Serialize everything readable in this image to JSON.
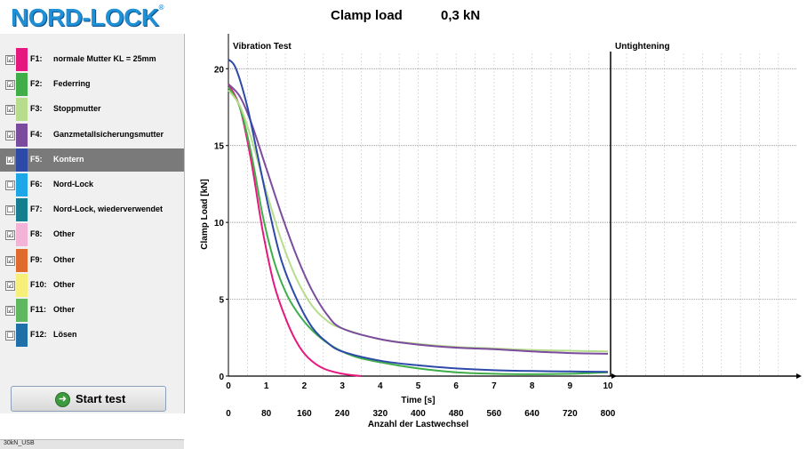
{
  "header": {
    "logo_text": "NORD-LOCK",
    "logo_tm": "®",
    "clamp_label": "Clamp load",
    "clamp_value": "0,3 kN"
  },
  "sidebar": {
    "items": [
      {
        "id": "F1:",
        "name": "normale Mutter KL = 25mm",
        "checked": "☑",
        "color": "#e6187f",
        "selected": false
      },
      {
        "id": "F2:",
        "name": "Federring",
        "checked": "☑",
        "color": "#3fae49",
        "selected": false
      },
      {
        "id": "F3:",
        "name": "Stoppmutter",
        "checked": "☑",
        "color": "#b7dc8c",
        "selected": false
      },
      {
        "id": "F4:",
        "name": "Ganzmetallsicherungsmutter",
        "checked": "☑",
        "color": "#7b4c9e",
        "selected": false
      },
      {
        "id": "F5:",
        "name": "Kontern",
        "checked": "☑",
        "color": "#2d4aa8",
        "selected": true
      },
      {
        "id": "F6:",
        "name": "Nord-Lock",
        "checked": "☐",
        "color": "#1ea7e8",
        "selected": false
      },
      {
        "id": "F7:",
        "name": "Nord-Lock, wiederverwendet",
        "checked": "☐",
        "color": "#147f8e",
        "selected": false
      },
      {
        "id": "F8:",
        "name": "Other",
        "checked": "☑",
        "color": "#f2b3d6",
        "selected": false
      },
      {
        "id": "F9:",
        "name": "Other",
        "checked": "☑",
        "color": "#e06a2c",
        "selected": false
      },
      {
        "id": "F10:",
        "name": "Other",
        "checked": "☑",
        "color": "#f6ef7a",
        "selected": false
      },
      {
        "id": "F11:",
        "name": "Other",
        "checked": "☑",
        "color": "#5fb85f",
        "selected": false
      },
      {
        "id": "F12:",
        "name": "Lösen",
        "checked": "☐",
        "color": "#1f6fa8",
        "selected": false
      }
    ],
    "start_button_label": "Start test",
    "status_text": "30kN_USB"
  },
  "chart_data": {
    "type": "line",
    "panels": [
      "Vibration Test",
      "Untightening"
    ],
    "ylabel": "Clamp Load [kN]",
    "xlabel": "Time [s]",
    "secondary_xlabel": "Anzahl der Lastwechsel",
    "ylim": [
      0,
      21
    ],
    "xlim": [
      0,
      10
    ],
    "yticks": [
      0,
      5,
      10,
      15,
      20
    ],
    "xticks": [
      0,
      1,
      2,
      3,
      4,
      5,
      6,
      7,
      8,
      9,
      10
    ],
    "secondary_xticks": [
      0,
      80,
      160,
      240,
      320,
      400,
      480,
      560,
      640,
      720,
      800
    ],
    "grid": true,
    "series": [
      {
        "color": "#e6187f",
        "points": [
          [
            0,
            19.0
          ],
          [
            0.3,
            17.5
          ],
          [
            0.6,
            14.0
          ],
          [
            0.9,
            9.5
          ],
          [
            1.2,
            6.0
          ],
          [
            1.5,
            3.8
          ],
          [
            1.8,
            2.2
          ],
          [
            2.1,
            1.2
          ],
          [
            2.5,
            0.5
          ],
          [
            3.0,
            0.15
          ],
          [
            3.5,
            0.0
          ]
        ]
      },
      {
        "color": "#3fae49",
        "points": [
          [
            0,
            18.8
          ],
          [
            0.3,
            17.5
          ],
          [
            0.6,
            14.5
          ],
          [
            0.9,
            10.5
          ],
          [
            1.2,
            7.5
          ],
          [
            1.5,
            5.5
          ],
          [
            1.8,
            4.2
          ],
          [
            2.2,
            3.0
          ],
          [
            2.7,
            2.0
          ],
          [
            3.3,
            1.3
          ],
          [
            4.0,
            0.9
          ],
          [
            5.0,
            0.5
          ],
          [
            6.0,
            0.25
          ],
          [
            7.0,
            0.15
          ],
          [
            8.0,
            0.12
          ],
          [
            9.0,
            0.15
          ],
          [
            10.0,
            0.25
          ]
        ]
      },
      {
        "color": "#b7dc8c",
        "points": [
          [
            0,
            18.6
          ],
          [
            0.3,
            17.6
          ],
          [
            0.6,
            15.5
          ],
          [
            1.0,
            12.0
          ],
          [
            1.4,
            8.8
          ],
          [
            1.8,
            6.3
          ],
          [
            2.2,
            4.6
          ],
          [
            2.6,
            3.6
          ],
          [
            3.0,
            3.1
          ],
          [
            4.0,
            2.4
          ],
          [
            5.0,
            2.1
          ],
          [
            6.0,
            1.9
          ],
          [
            7.0,
            1.8
          ],
          [
            8.0,
            1.7
          ],
          [
            9.0,
            1.65
          ],
          [
            10.0,
            1.6
          ]
        ]
      },
      {
        "color": "#7b4c9e",
        "points": [
          [
            0,
            19.0
          ],
          [
            0.3,
            18.2
          ],
          [
            0.6,
            16.5
          ],
          [
            1.0,
            13.5
          ],
          [
            1.4,
            10.5
          ],
          [
            1.8,
            7.8
          ],
          [
            2.2,
            5.6
          ],
          [
            2.6,
            4.0
          ],
          [
            3.0,
            3.1
          ],
          [
            4.0,
            2.4
          ],
          [
            5.0,
            2.05
          ],
          [
            6.0,
            1.85
          ],
          [
            7.0,
            1.75
          ],
          [
            8.0,
            1.6
          ],
          [
            9.0,
            1.5
          ],
          [
            10.0,
            1.45
          ]
        ]
      },
      {
        "color": "#2d4aa8",
        "points": [
          [
            0,
            20.6
          ],
          [
            0.2,
            20.0
          ],
          [
            0.5,
            17.5
          ],
          [
            0.8,
            14.0
          ],
          [
            1.1,
            10.5
          ],
          [
            1.4,
            7.5
          ],
          [
            1.8,
            5.0
          ],
          [
            2.2,
            3.2
          ],
          [
            2.6,
            2.2
          ],
          [
            3.0,
            1.6
          ],
          [
            4.0,
            1.0
          ],
          [
            5.0,
            0.7
          ],
          [
            6.0,
            0.5
          ],
          [
            7.0,
            0.38
          ],
          [
            8.0,
            0.33
          ],
          [
            9.0,
            0.3
          ],
          [
            10.0,
            0.28
          ]
        ]
      }
    ]
  }
}
